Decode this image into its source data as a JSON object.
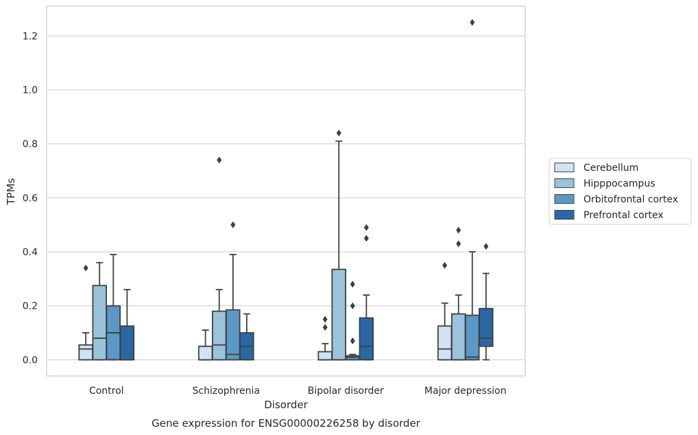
{
  "chart_data": {
    "type": "box",
    "title": "",
    "caption": "Gene expression for ENSG00000226258 by disorder",
    "xlabel": "Disorder",
    "ylabel": "TPMs",
    "ylim": [
      -0.06,
      1.31
    ],
    "yticks": [
      0.0,
      0.2,
      0.4,
      0.6,
      0.8,
      1.0,
      1.2
    ],
    "ytick_labels": [
      "0.0",
      "0.2",
      "0.4",
      "0.6",
      "0.8",
      "1.0",
      "1.2"
    ],
    "grid": "horizontal",
    "legend_position": "right",
    "categories": [
      "Control",
      "Schizophrenia",
      "Bipolar disorder",
      "Major depression"
    ],
    "series": [
      {
        "name": "Cerebellum",
        "color": "#d2e2f0",
        "boxes": [
          {
            "whisker_low": 0.0,
            "q1": 0.0,
            "median": 0.04,
            "q3": 0.055,
            "whisker_high": 0.1,
            "outliers": [
              0.34
            ]
          },
          {
            "whisker_low": 0.0,
            "q1": 0.0,
            "median": 0.0,
            "q3": 0.05,
            "whisker_high": 0.11,
            "outliers": []
          },
          {
            "whisker_low": 0.0,
            "q1": 0.0,
            "median": 0.0,
            "q3": 0.03,
            "whisker_high": 0.06,
            "outliers": [
              0.12,
              0.15
            ]
          },
          {
            "whisker_low": 0.0,
            "q1": 0.0,
            "median": 0.04,
            "q3": 0.125,
            "whisker_high": 0.21,
            "outliers": [
              0.35
            ]
          }
        ]
      },
      {
        "name": "Hipppocampus",
        "color": "#9bc3da",
        "boxes": [
          {
            "whisker_low": 0.0,
            "q1": 0.0,
            "median": 0.08,
            "q3": 0.275,
            "whisker_high": 0.36,
            "outliers": []
          },
          {
            "whisker_low": 0.0,
            "q1": 0.0,
            "median": 0.055,
            "q3": 0.18,
            "whisker_high": 0.26,
            "outliers": [
              0.74
            ]
          },
          {
            "whisker_low": 0.0,
            "q1": 0.0,
            "median": 0.0,
            "q3": 0.335,
            "whisker_high": 0.81,
            "outliers": [
              0.84
            ]
          },
          {
            "whisker_low": 0.0,
            "q1": 0.0,
            "median": 0.0,
            "q3": 0.17,
            "whisker_high": 0.24,
            "outliers": [
              0.43,
              0.48
            ]
          }
        ]
      },
      {
        "name": "Orbitofrontal cortex",
        "color": "#5b98c5",
        "boxes": [
          {
            "whisker_low": 0.0,
            "q1": 0.0,
            "median": 0.1,
            "q3": 0.2,
            "whisker_high": 0.39,
            "outliers": []
          },
          {
            "whisker_low": 0.0,
            "q1": 0.0,
            "median": 0.02,
            "q3": 0.185,
            "whisker_high": 0.39,
            "outliers": [
              0.5
            ]
          },
          {
            "whisker_low": 0.0,
            "q1": 0.0,
            "median": 0.01,
            "q3": 0.015,
            "whisker_high": 0.02,
            "outliers": [
              0.07,
              0.2,
              0.28
            ]
          },
          {
            "whisker_low": 0.0,
            "q1": 0.0,
            "median": 0.01,
            "q3": 0.165,
            "whisker_high": 0.4,
            "outliers": [
              1.25
            ]
          }
        ]
      },
      {
        "name": "Prefrontal cortex",
        "color": "#2a67a4",
        "boxes": [
          {
            "whisker_low": 0.0,
            "q1": 0.0,
            "median": 0.0,
            "q3": 0.125,
            "whisker_high": 0.26,
            "outliers": []
          },
          {
            "whisker_low": 0.0,
            "q1": 0.0,
            "median": 0.05,
            "q3": 0.1,
            "whisker_high": 0.17,
            "outliers": []
          },
          {
            "whisker_low": 0.0,
            "q1": 0.0,
            "median": 0.05,
            "q3": 0.155,
            "whisker_high": 0.24,
            "outliers": [
              0.45,
              0.49
            ]
          },
          {
            "whisker_low": 0.0,
            "q1": 0.05,
            "median": 0.08,
            "q3": 0.19,
            "whisker_high": 0.32,
            "outliers": [
              0.42
            ]
          }
        ]
      }
    ]
  }
}
